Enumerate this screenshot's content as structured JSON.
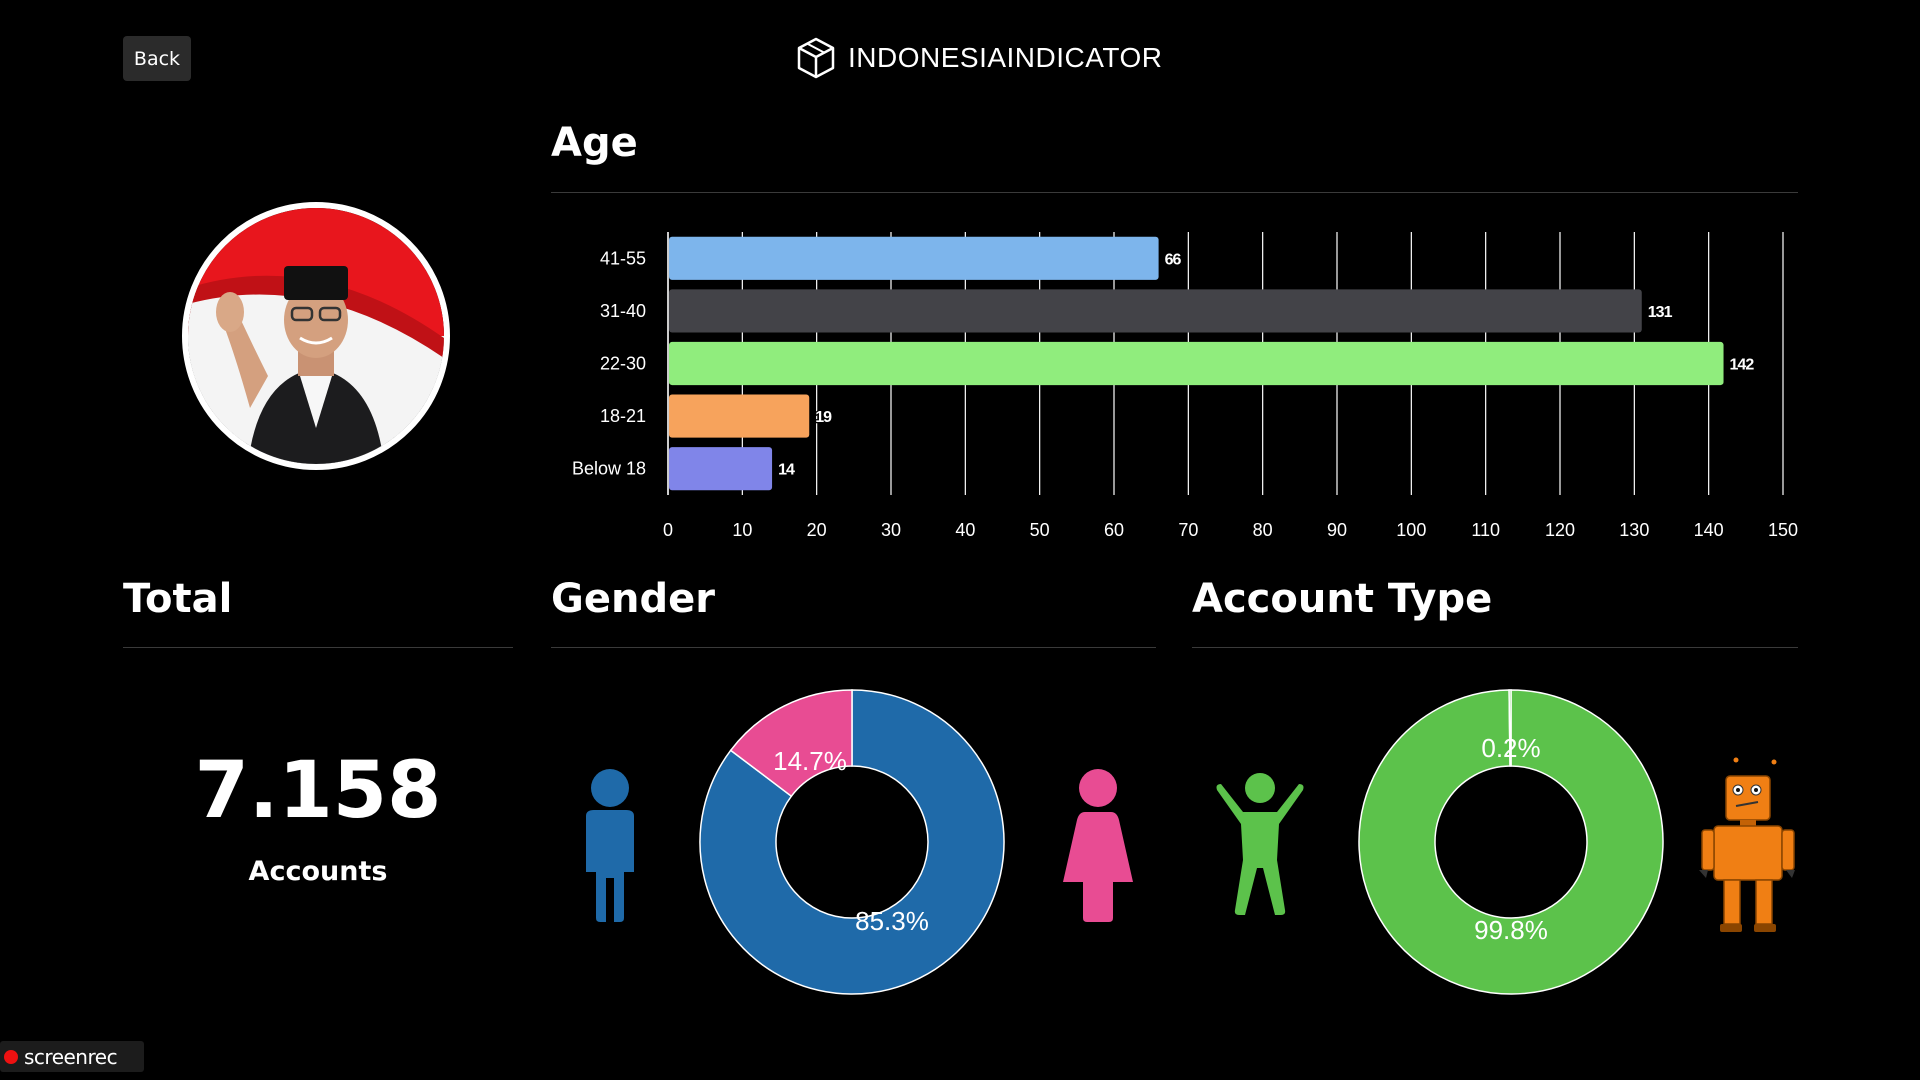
{
  "header": {
    "back_label": "Back",
    "brand": "INDONESIAINDICATOR"
  },
  "sections": {
    "age": "Age",
    "total": "Total",
    "gender": "Gender",
    "account_type": "Account Type"
  },
  "total": {
    "value": "7.158",
    "label": "Accounts"
  },
  "footer": {
    "recorder_label": "screenrec"
  },
  "colors": {
    "background": "#000000",
    "male": "#1f6aa9",
    "female": "#e84c93",
    "human": "#5cc24b",
    "bot": "#f07f14"
  },
  "icons": {
    "brand": "cube-icon",
    "male": "male-person-icon",
    "female": "female-person-icon",
    "human": "person-arms-up-icon",
    "bot": "robot-icon"
  },
  "chart_data": [
    {
      "type": "bar",
      "orientation": "horizontal",
      "categories": [
        "41-55",
        "31-40",
        "22-30",
        "18-21",
        "Below 18"
      ],
      "values": [
        66,
        131,
        142,
        19,
        14
      ],
      "colors": [
        "#7db5ec",
        "#434348",
        "#90ed7d",
        "#f7a35c",
        "#8085e9"
      ],
      "data_labels": [
        "66",
        "131",
        "142",
        "19",
        "14"
      ],
      "xticks": [
        "0",
        "10",
        "20",
        "30",
        "40",
        "50",
        "60",
        "70",
        "80",
        "90",
        "100",
        "110",
        "120",
        "130",
        "140",
        "150"
      ],
      "xlim": [
        0,
        150
      ],
      "grid": true
    },
    {
      "type": "pie",
      "variant": "donut",
      "slices": [
        {
          "value": 85.3,
          "label": "85.3%",
          "color": "#1f6aa9"
        },
        {
          "value": 14.7,
          "label": "14.7%",
          "color": "#e84c93"
        }
      ]
    },
    {
      "type": "pie",
      "variant": "donut",
      "slices": [
        {
          "value": 99.8,
          "label": "99.8%",
          "color": "#5cc24b"
        },
        {
          "value": 0.2,
          "label": "0.2%",
          "color": "#5cc24b"
        }
      ]
    }
  ]
}
